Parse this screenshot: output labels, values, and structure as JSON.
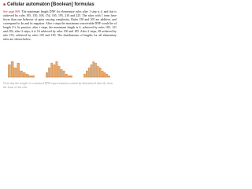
{
  "header": {
    "bullet": "■",
    "title": "Cellular automaton [Boolean] formulas"
  },
  "body": {
    "link": "See page 869.",
    "text": "The maximum length DNF for elementary rules after 1 step is 4, and this is achieved by rules 105, 150, 106, 154, 165, 195, 210 and 225. The rules with 1 term have fewer than one behavior of quite varying complexity. Rules 150 and 105 are additive, and correspond to 4n and its negation. After t steps the maximum conceivable DNF would be of length 2^t. In practice, after t steps, the maximum length is 4, achieved by rules 105, 121 and 182; after 3 steps, it is 16 achieved by rules 150 and 105. After 2 steps, 28 achieved by rule 135; achieved by rules 105 and 150. The distributions of lengths for all elementary rules are shown below."
  },
  "figure": {
    "panels": [
      {
        "values": [
          8,
          10,
          6,
          9,
          4,
          3,
          2,
          1,
          1
        ]
      },
      {
        "values": [
          3,
          6,
          9,
          8,
          10,
          7,
          5,
          4,
          2,
          1,
          1
        ]
      },
      {
        "values": [
          2,
          4,
          6,
          8,
          10,
          9,
          7,
          6,
          4,
          3,
          2,
          1
        ]
      }
    ]
  },
  "footer": {
    "text": "Note that the length of a minimal DNF representation cannot be determined directly from the form of the rule."
  }
}
